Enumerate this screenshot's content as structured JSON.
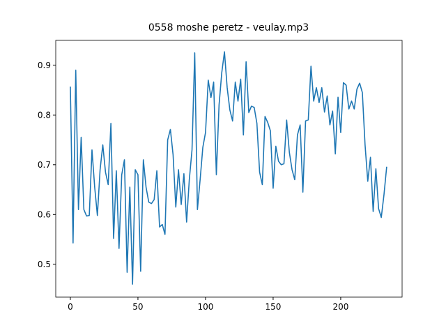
{
  "chart_data": {
    "type": "line",
    "title": "0558 moshe peretz - veulay.mp3",
    "x": [
      0,
      2,
      4,
      6,
      8,
      10,
      12,
      14,
      16,
      18,
      20,
      22,
      24,
      26,
      28,
      30,
      32,
      34,
      36,
      38,
      40,
      42,
      44,
      46,
      48,
      50,
      52,
      54,
      56,
      58,
      60,
      62,
      64,
      66,
      68,
      70,
      72,
      74,
      76,
      78,
      80,
      82,
      84,
      86,
      88,
      90,
      92,
      94,
      96,
      98,
      100,
      102,
      104,
      106,
      108,
      110,
      112,
      114,
      116,
      118,
      120,
      122,
      124,
      126,
      128,
      130,
      132,
      134,
      136,
      138,
      140,
      142,
      144,
      146,
      148,
      150,
      152,
      154,
      156,
      158,
      160,
      162,
      164,
      166,
      168,
      170,
      172,
      174,
      176,
      178,
      180,
      182,
      184,
      186,
      188,
      190,
      192,
      194,
      196,
      198,
      200,
      202,
      204,
      206,
      208,
      210,
      212,
      214,
      216,
      218,
      220,
      222,
      224,
      226,
      228,
      230,
      232,
      234
    ],
    "series": [
      {
        "name": "line",
        "color": "#1f77b4",
        "values": [
          0.857,
          0.543,
          0.89,
          0.61,
          0.755,
          0.61,
          0.597,
          0.598,
          0.73,
          0.655,
          0.598,
          0.69,
          0.74,
          0.685,
          0.66,
          0.783,
          0.552,
          0.688,
          0.532,
          0.68,
          0.71,
          0.484,
          0.655,
          0.46,
          0.69,
          0.68,
          0.486,
          0.71,
          0.655,
          0.625,
          0.622,
          0.63,
          0.688,
          0.575,
          0.58,
          0.56,
          0.75,
          0.771,
          0.72,
          0.615,
          0.69,
          0.62,
          0.682,
          0.585,
          0.67,
          0.73,
          0.925,
          0.61,
          0.67,
          0.735,
          0.765,
          0.87,
          0.835,
          0.866,
          0.68,
          0.82,
          0.885,
          0.927,
          0.855,
          0.81,
          0.788,
          0.866,
          0.828,
          0.872,
          0.76,
          0.907,
          0.805,
          0.818,
          0.815,
          0.783,
          0.685,
          0.66,
          0.797,
          0.785,
          0.768,
          0.653,
          0.737,
          0.707,
          0.7,
          0.702,
          0.79,
          0.725,
          0.69,
          0.67,
          0.76,
          0.78,
          0.645,
          0.788,
          0.79,
          0.898,
          0.828,
          0.855,
          0.825,
          0.855,
          0.806,
          0.838,
          0.78,
          0.808,
          0.722,
          0.836,
          0.765,
          0.865,
          0.86,
          0.812,
          0.828,
          0.812,
          0.852,
          0.864,
          0.845,
          0.74,
          0.667,
          0.715,
          0.606,
          0.692,
          0.612,
          0.594,
          0.64,
          0.696
        ]
      }
    ],
    "xlim": [
      -10.8,
      245.4
    ],
    "ylim": [
      0.434,
      0.95
    ],
    "xticks": [
      0,
      50,
      100,
      150,
      200
    ],
    "yticks": [
      0.5,
      0.6,
      0.7,
      0.8,
      0.9
    ]
  }
}
